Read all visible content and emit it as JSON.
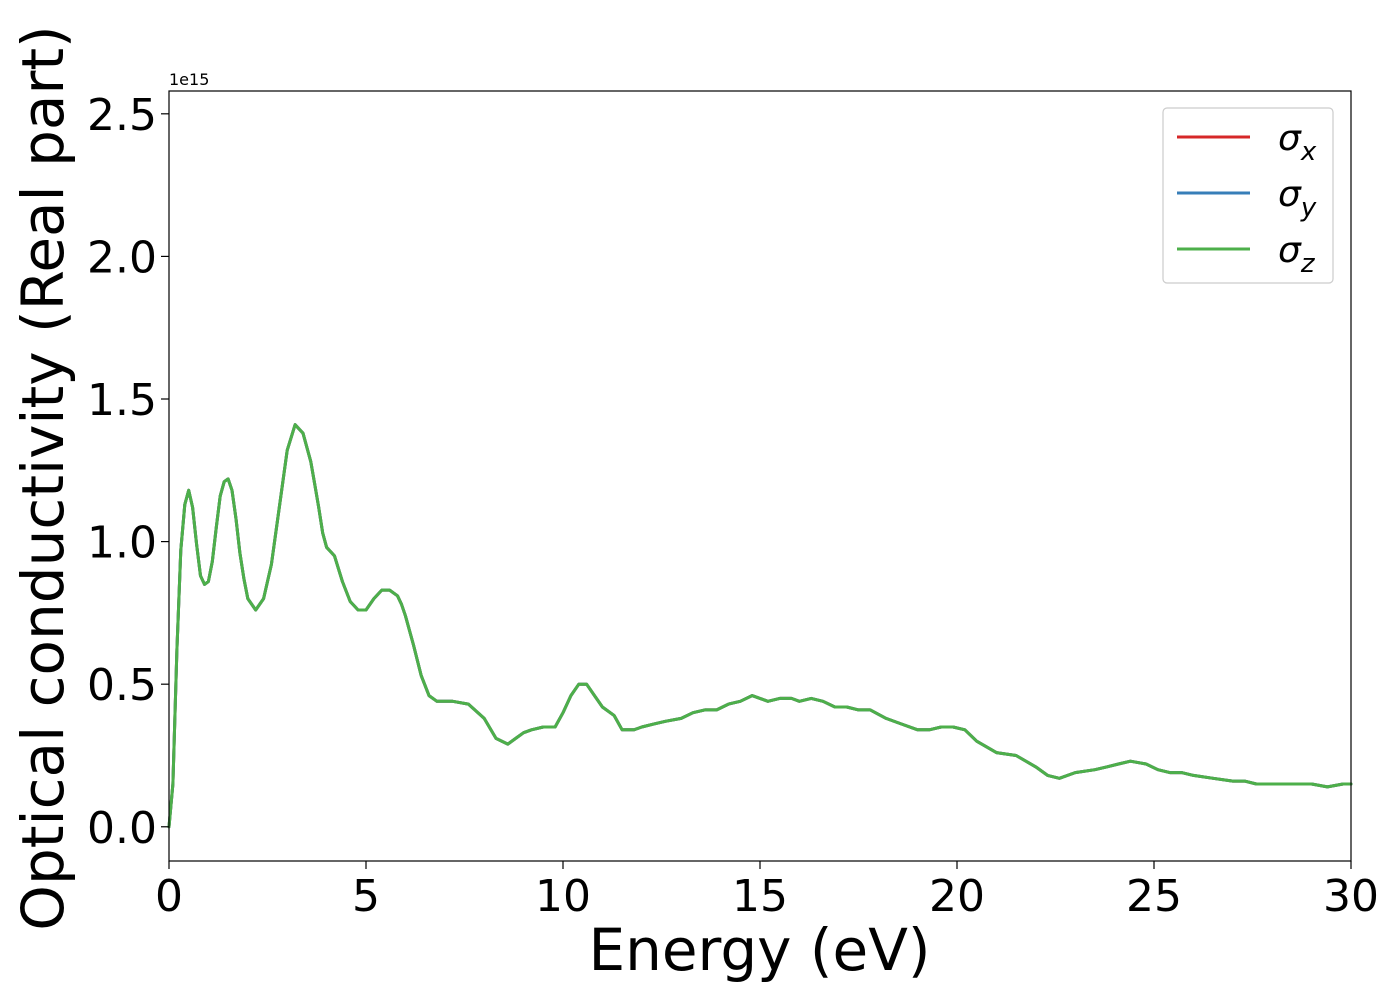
{
  "chart_data": {
    "type": "line",
    "xlabel": "Energy (eV)",
    "ylabel": "Optical conductivity (Real part)",
    "y_offset_label": "1e15",
    "xlim": [
      0,
      30
    ],
    "ylim": [
      -0.12,
      2.58
    ],
    "x_ticks": [
      0,
      5,
      10,
      15,
      20,
      25,
      30
    ],
    "x_tick_labels": [
      "0",
      "5",
      "10",
      "15",
      "20",
      "25",
      "30"
    ],
    "y_ticks": [
      0.0,
      0.5,
      1.0,
      1.5,
      2.0,
      2.5
    ],
    "y_tick_labels": [
      "0.0",
      "0.5",
      "1.0",
      "1.5",
      "2.0",
      "2.5"
    ],
    "grid": false,
    "legend_position": "top-right",
    "x": [
      0.0,
      0.1,
      0.2,
      0.3,
      0.4,
      0.5,
      0.6,
      0.7,
      0.8,
      0.9,
      1.0,
      1.1,
      1.2,
      1.3,
      1.4,
      1.5,
      1.6,
      1.7,
      1.8,
      1.9,
      2.0,
      2.2,
      2.4,
      2.6,
      2.8,
      3.0,
      3.2,
      3.4,
      3.6,
      3.7,
      3.8,
      3.9,
      4.0,
      4.2,
      4.4,
      4.6,
      4.8,
      5.0,
      5.2,
      5.4,
      5.6,
      5.8,
      5.9,
      6.0,
      6.2,
      6.4,
      6.6,
      6.8,
      7.0,
      7.2,
      7.6,
      8.0,
      8.3,
      8.6,
      8.8,
      9.0,
      9.2,
      9.5,
      9.8,
      10.0,
      10.2,
      10.4,
      10.6,
      10.8,
      11.0,
      11.3,
      11.5,
      11.8,
      12.0,
      12.3,
      12.6,
      13.0,
      13.3,
      13.6,
      13.9,
      14.2,
      14.5,
      14.8,
      15.0,
      15.2,
      15.5,
      15.8,
      16.0,
      16.3,
      16.6,
      16.9,
      17.2,
      17.5,
      17.8,
      18.2,
      18.6,
      19.0,
      19.3,
      19.6,
      19.9,
      20.2,
      20.5,
      21.0,
      21.5,
      22.0,
      22.3,
      22.6,
      23.0,
      23.5,
      23.8,
      24.1,
      24.4,
      24.8,
      25.1,
      25.4,
      25.7,
      26.0,
      26.5,
      27.0,
      27.3,
      27.6,
      27.9,
      28.2,
      28.6,
      29.0,
      29.4,
      29.8,
      30.0
    ],
    "series": [
      {
        "name": "σx",
        "symbol": "σ",
        "subscript": "x",
        "color": "#d62728",
        "values": [
          0.0,
          0.15,
          0.62,
          0.97,
          1.13,
          1.18,
          1.12,
          0.99,
          0.88,
          0.85,
          0.86,
          0.93,
          1.05,
          1.16,
          1.21,
          1.22,
          1.18,
          1.08,
          0.96,
          0.87,
          0.8,
          0.76,
          0.8,
          0.92,
          1.12,
          1.32,
          1.41,
          1.38,
          1.28,
          1.2,
          1.12,
          1.03,
          0.98,
          0.95,
          0.86,
          0.79,
          0.76,
          0.76,
          0.8,
          0.83,
          0.83,
          0.81,
          0.78,
          0.74,
          0.64,
          0.53,
          0.46,
          0.44,
          0.44,
          0.44,
          0.43,
          0.38,
          0.31,
          0.29,
          0.31,
          0.33,
          0.34,
          0.35,
          0.35,
          0.4,
          0.46,
          0.5,
          0.5,
          0.46,
          0.42,
          0.39,
          0.34,
          0.34,
          0.35,
          0.36,
          0.37,
          0.38,
          0.4,
          0.41,
          0.41,
          0.43,
          0.44,
          0.46,
          0.45,
          0.44,
          0.45,
          0.45,
          0.44,
          0.45,
          0.44,
          0.42,
          0.42,
          0.41,
          0.41,
          0.38,
          0.36,
          0.34,
          0.34,
          0.35,
          0.35,
          0.34,
          0.3,
          0.26,
          0.25,
          0.21,
          0.18,
          0.17,
          0.19,
          0.2,
          0.21,
          0.22,
          0.23,
          0.22,
          0.2,
          0.19,
          0.19,
          0.18,
          0.17,
          0.16,
          0.16,
          0.15,
          0.15,
          0.15,
          0.15,
          0.15,
          0.14,
          0.15,
          0.15
        ]
      },
      {
        "name": "σy",
        "symbol": "σ",
        "subscript": "y",
        "color": "#377eb8",
        "values": [
          0.0,
          0.15,
          0.62,
          0.97,
          1.13,
          1.18,
          1.12,
          0.99,
          0.88,
          0.85,
          0.86,
          0.93,
          1.05,
          1.16,
          1.21,
          1.22,
          1.18,
          1.08,
          0.96,
          0.87,
          0.8,
          0.76,
          0.8,
          0.92,
          1.12,
          1.32,
          1.41,
          1.38,
          1.28,
          1.2,
          1.12,
          1.03,
          0.98,
          0.95,
          0.86,
          0.79,
          0.76,
          0.76,
          0.8,
          0.83,
          0.83,
          0.81,
          0.78,
          0.74,
          0.64,
          0.53,
          0.46,
          0.44,
          0.44,
          0.44,
          0.43,
          0.38,
          0.31,
          0.29,
          0.31,
          0.33,
          0.34,
          0.35,
          0.35,
          0.4,
          0.46,
          0.5,
          0.5,
          0.46,
          0.42,
          0.39,
          0.34,
          0.34,
          0.35,
          0.36,
          0.37,
          0.38,
          0.4,
          0.41,
          0.41,
          0.43,
          0.44,
          0.46,
          0.45,
          0.44,
          0.45,
          0.45,
          0.44,
          0.45,
          0.44,
          0.42,
          0.42,
          0.41,
          0.41,
          0.38,
          0.36,
          0.34,
          0.34,
          0.35,
          0.35,
          0.34,
          0.3,
          0.26,
          0.25,
          0.21,
          0.18,
          0.17,
          0.19,
          0.2,
          0.21,
          0.22,
          0.23,
          0.22,
          0.2,
          0.19,
          0.19,
          0.18,
          0.17,
          0.16,
          0.16,
          0.15,
          0.15,
          0.15,
          0.15,
          0.15,
          0.14,
          0.15,
          0.15
        ]
      },
      {
        "name": "σz",
        "symbol": "σ",
        "subscript": "z",
        "color": "#4daf4a",
        "values": [
          0.0,
          0.15,
          0.62,
          0.97,
          1.13,
          1.18,
          1.12,
          0.99,
          0.88,
          0.85,
          0.86,
          0.93,
          1.05,
          1.16,
          1.21,
          1.22,
          1.18,
          1.08,
          0.96,
          0.87,
          0.8,
          0.76,
          0.8,
          0.92,
          1.12,
          1.32,
          1.41,
          1.38,
          1.28,
          1.2,
          1.12,
          1.03,
          0.98,
          0.95,
          0.86,
          0.79,
          0.76,
          0.76,
          0.8,
          0.83,
          0.83,
          0.81,
          0.78,
          0.74,
          0.64,
          0.53,
          0.46,
          0.44,
          0.44,
          0.44,
          0.43,
          0.38,
          0.31,
          0.29,
          0.31,
          0.33,
          0.34,
          0.35,
          0.35,
          0.4,
          0.46,
          0.5,
          0.5,
          0.46,
          0.42,
          0.39,
          0.34,
          0.34,
          0.35,
          0.36,
          0.37,
          0.38,
          0.4,
          0.41,
          0.41,
          0.43,
          0.44,
          0.46,
          0.45,
          0.44,
          0.45,
          0.45,
          0.44,
          0.45,
          0.44,
          0.42,
          0.42,
          0.41,
          0.41,
          0.38,
          0.36,
          0.34,
          0.34,
          0.35,
          0.35,
          0.34,
          0.3,
          0.26,
          0.25,
          0.21,
          0.18,
          0.17,
          0.19,
          0.2,
          0.21,
          0.22,
          0.23,
          0.22,
          0.2,
          0.19,
          0.19,
          0.18,
          0.17,
          0.16,
          0.16,
          0.15,
          0.15,
          0.15,
          0.15,
          0.15,
          0.14,
          0.15,
          0.15
        ]
      }
    ]
  }
}
